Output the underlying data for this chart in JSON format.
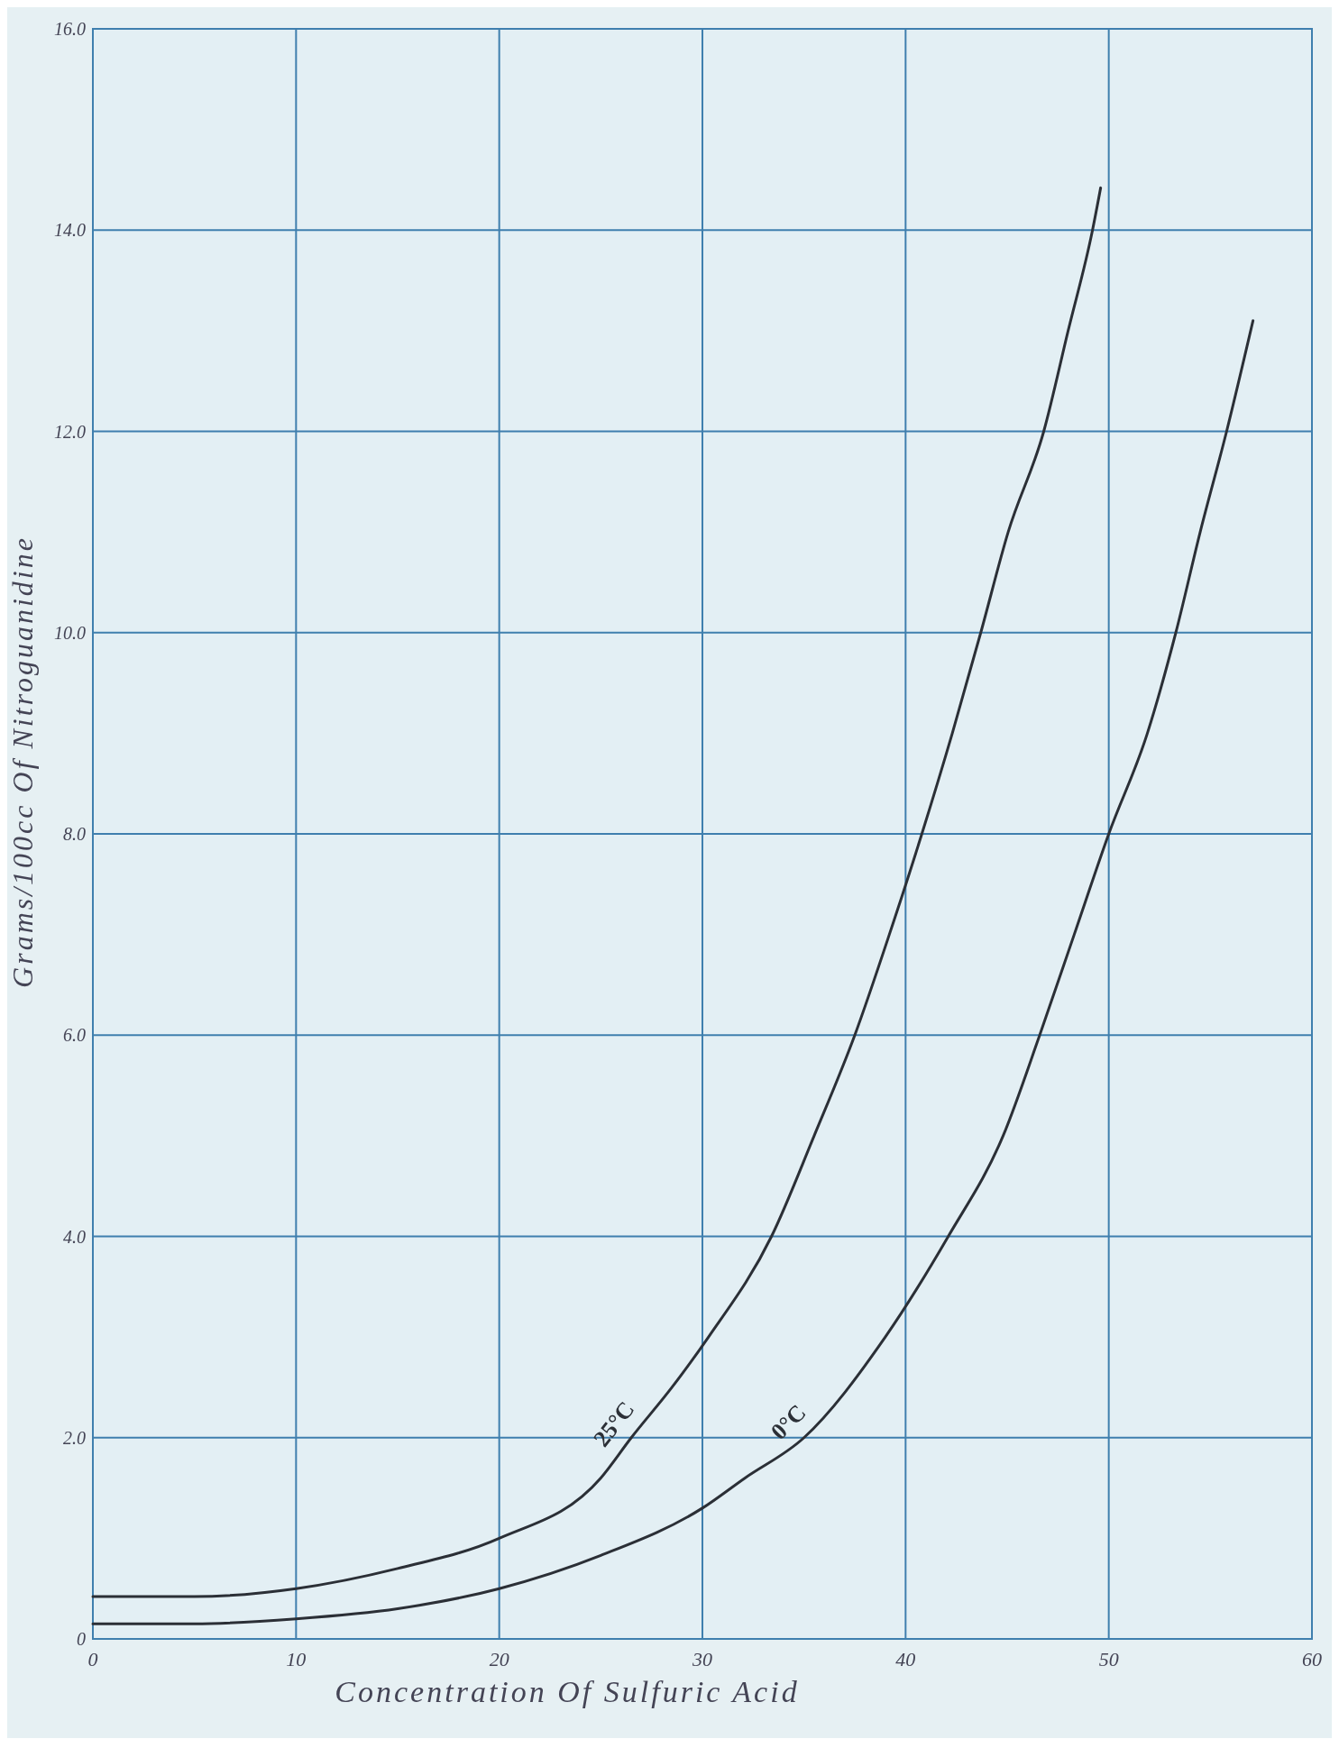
{
  "chart_data": {
    "type": "line",
    "xlabel": "Concentration Of Sulfuric Acid",
    "ylabel": "Grams/100cc Of Nitroguanidine",
    "xlim": [
      0,
      60
    ],
    "ylim": [
      0,
      16
    ],
    "xticks": [
      0,
      10,
      20,
      30,
      40,
      50,
      60
    ],
    "yticks": [
      {
        "value": 0,
        "label": "0"
      },
      {
        "value": 2,
        "label": "2.0"
      },
      {
        "value": 4,
        "label": "4.0"
      },
      {
        "value": 6,
        "label": "6.0"
      },
      {
        "value": 8,
        "label": "8.0"
      },
      {
        "value": 10,
        "label": "10.0"
      },
      {
        "value": 12,
        "label": "12.0"
      },
      {
        "value": 14,
        "label": "14.0"
      },
      {
        "value": 16,
        "label": "16.0"
      }
    ],
    "grid": true,
    "marker": "none",
    "line_style": "solid",
    "series": [
      {
        "name": "25°C",
        "color": "#2b2f36",
        "x": [
          0,
          5,
          10,
          15,
          20,
          25,
          26.5,
          28.5,
          30.3,
          33.4,
          35.5,
          37.5,
          39.2,
          40.8,
          42.3,
          43.7,
          45.05,
          46.8,
          48,
          49.2,
          49.6
        ],
        "values": [
          0.42,
          0.42,
          0.5,
          0.7,
          1.0,
          1.6,
          2.0,
          2.5,
          3.0,
          4.0,
          5,
          6,
          7,
          8,
          9,
          10,
          11,
          12,
          13,
          14,
          14.42
        ]
      },
      {
        "name": "0°C",
        "color": "#2b2f36",
        "x": [
          0,
          5,
          10,
          15,
          20,
          25,
          30,
          32.1,
          35,
          39,
          42.1,
          44.8,
          46.6,
          48.3,
          50,
          51.9,
          53.3,
          54.5,
          55.8,
          57.1
        ],
        "values": [
          0.15,
          0.15,
          0.2,
          0.3,
          0.5,
          0.83,
          1.3,
          1.6,
          2.0,
          3.0,
          4.0,
          5,
          6,
          7,
          8,
          9,
          10,
          11,
          12,
          13.1
        ]
      }
    ]
  }
}
